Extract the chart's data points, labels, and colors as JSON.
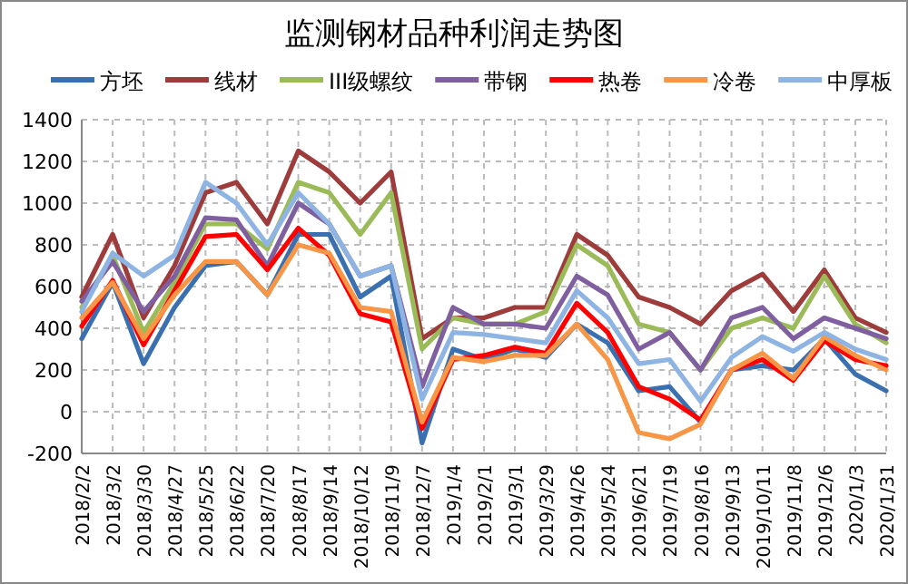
{
  "chart_data": {
    "type": "line",
    "title": "监测钢材品种利润走势图",
    "categories": [
      "2018/2/2",
      "2018/3/2",
      "2018/3/30",
      "2018/4/27",
      "2018/5/25",
      "2018/6/22",
      "2018/7/20",
      "2018/8/17",
      "2018/9/14",
      "2018/10/12",
      "2018/11/9",
      "2018/12/7",
      "2019/1/4",
      "2019/2/1",
      "2019/3/1",
      "2019/3/29",
      "2019/4/26",
      "2019/5/24",
      "2019/6/21",
      "2019/7/19",
      "2019/8/16",
      "2019/9/13",
      "2019/10/11",
      "2019/11/8",
      "2019/12/6",
      "2020/1/3",
      "2020/1/31"
    ],
    "series": [
      {
        "name": "方坯",
        "color": "#3a6fb0",
        "values": [
          350,
          620,
          230,
          500,
          700,
          720,
          560,
          850,
          850,
          550,
          650,
          -150,
          300,
          250,
          300,
          260,
          420,
          330,
          100,
          120,
          -50,
          200,
          220,
          200,
          350,
          180,
          100
        ]
      },
      {
        "name": "线材",
        "color": "#9e3b3b",
        "values": [
          550,
          850,
          450,
          700,
          1050,
          1100,
          900,
          1250,
          1150,
          1000,
          1150,
          350,
          450,
          450,
          500,
          500,
          850,
          750,
          550,
          500,
          420,
          580,
          660,
          480,
          680,
          450,
          380
        ]
      },
      {
        "name": "III级螺纹",
        "color": "#9bbb59",
        "values": [
          500,
          750,
          380,
          620,
          900,
          900,
          780,
          1100,
          1050,
          850,
          1050,
          300,
          450,
          420,
          420,
          480,
          800,
          700,
          420,
          380,
          200,
          400,
          450,
          400,
          650,
          420,
          330
        ]
      },
      {
        "name": "带钢",
        "color": "#7f5fa0",
        "values": [
          530,
          720,
          480,
          650,
          930,
          920,
          700,
          1000,
          900,
          650,
          700,
          120,
          500,
          420,
          420,
          400,
          650,
          560,
          300,
          380,
          200,
          450,
          500,
          350,
          450,
          400,
          350
        ]
      },
      {
        "name": "热卷",
        "color": "#ff0000",
        "values": [
          410,
          630,
          320,
          580,
          840,
          850,
          680,
          880,
          750,
          470,
          430,
          -80,
          250,
          270,
          310,
          280,
          520,
          380,
          120,
          60,
          -40,
          200,
          250,
          150,
          340,
          250,
          220
        ]
      },
      {
        "name": "冷卷",
        "color": "#f79646",
        "values": [
          450,
          620,
          350,
          560,
          720,
          720,
          560,
          800,
          760,
          500,
          480,
          -50,
          260,
          240,
          270,
          270,
          420,
          250,
          -100,
          -130,
          -60,
          200,
          280,
          160,
          360,
          270,
          200
        ]
      },
      {
        "name": "中厚板",
        "color": "#8eb4e3",
        "values": [
          480,
          760,
          650,
          750,
          1100,
          1000,
          800,
          1050,
          900,
          650,
          700,
          60,
          380,
          370,
          350,
          330,
          580,
          450,
          230,
          250,
          50,
          260,
          360,
          290,
          380,
          300,
          250
        ]
      }
    ],
    "ylim": [
      -200,
      1400
    ],
    "yticks": [
      -200,
      0,
      200,
      400,
      600,
      800,
      1000,
      1200,
      1400
    ],
    "grid": true,
    "legend": "top",
    "marker": "none",
    "line_style": "solid"
  }
}
